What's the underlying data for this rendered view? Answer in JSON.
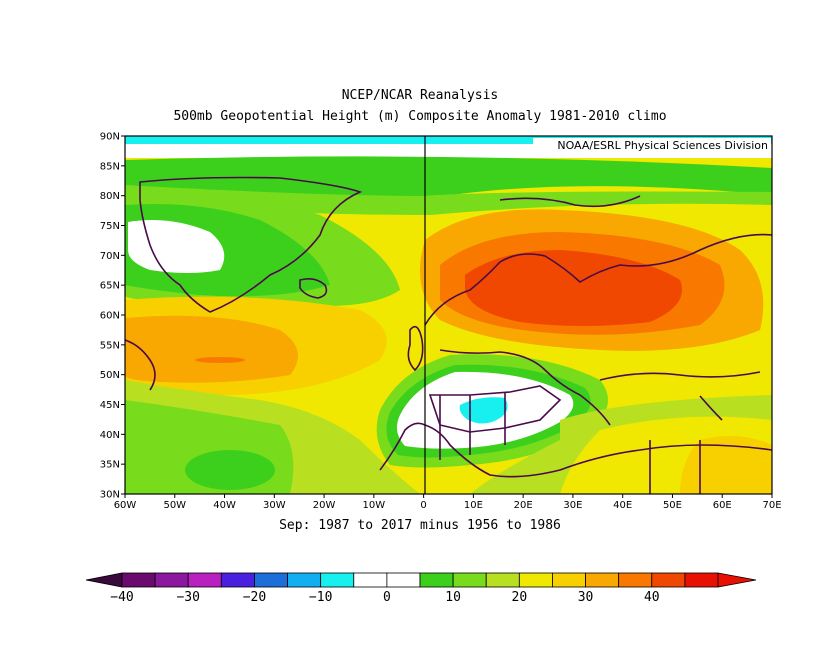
{
  "header": {
    "title": "NCEP/NCAR Reanalysis",
    "subtitle": "500mb Geopotential Height (m) Composite Anomaly 1981-2010 climo"
  },
  "credit": "NOAA/ESRL Physical Sciences Division",
  "period": "Sep: 1987 to 2017 minus 1956 to 1986",
  "map": {
    "lon_range": [
      -60,
      70
    ],
    "lat_range": [
      30,
      90
    ],
    "lat_ticks": [
      "90N",
      "85N",
      "80N",
      "75N",
      "70N",
      "65N",
      "60N",
      "55N",
      "50N",
      "45N",
      "40N",
      "35N",
      "30N"
    ],
    "lon_ticks": [
      "60W",
      "50W",
      "40W",
      "30W",
      "20W",
      "10W",
      "0",
      "10E",
      "20E",
      "30E",
      "40E",
      "50E",
      "60E",
      "70E"
    ],
    "regions": [
      {
        "name": "warm-anomaly-scandinavia",
        "value": 35
      },
      {
        "name": "warm-anomaly-north-atlantic",
        "value": 30
      },
      {
        "name": "cold-anomaly-central-europe",
        "value": -5
      },
      {
        "name": "neutral-greenland",
        "value": 0
      }
    ]
  },
  "colorbar": {
    "labels": [
      "-40",
      "-30",
      "-20",
      "-10",
      "0",
      "10",
      "20",
      "30",
      "40"
    ],
    "colors": [
      "#6a0a6e",
      "#8c18a0",
      "#b820c0",
      "#4a20e0",
      "#1c6ed8",
      "#10b0f0",
      "#18f0f0",
      "#ffffff",
      "#ffffff",
      "#3cd01c",
      "#78dc1c",
      "#b8e020",
      "#f0e800",
      "#f8d000",
      "#f8a800",
      "#f87800",
      "#f04800",
      "#e81000"
    ]
  }
}
